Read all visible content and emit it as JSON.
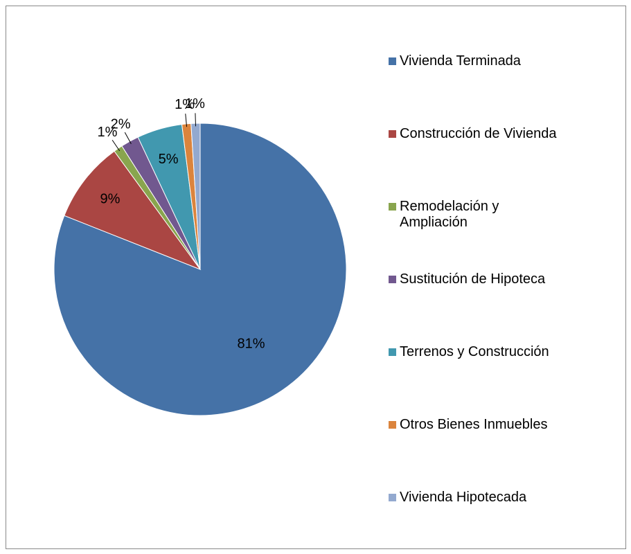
{
  "chart_data": {
    "type": "pie",
    "categories": [
      "Vivienda Terminada",
      "Construcción de Vivienda",
      "Remodelación y Ampliación",
      "Sustitución de Hipoteca",
      "Terrenos y Construcción",
      "Otros Bienes Inmuebles",
      "Vivienda Hipotecada"
    ],
    "values": [
      81,
      9,
      1,
      2,
      5,
      1,
      1
    ],
    "value_labels": [
      "81%",
      "9%",
      "1%",
      "2%",
      "5%",
      "1%",
      "1%"
    ],
    "colors": [
      "#4572a7",
      "#aa4643",
      "#89a54e",
      "#71588f",
      "#4198af",
      "#db843d",
      "#93a9cf"
    ],
    "legend": "right"
  }
}
